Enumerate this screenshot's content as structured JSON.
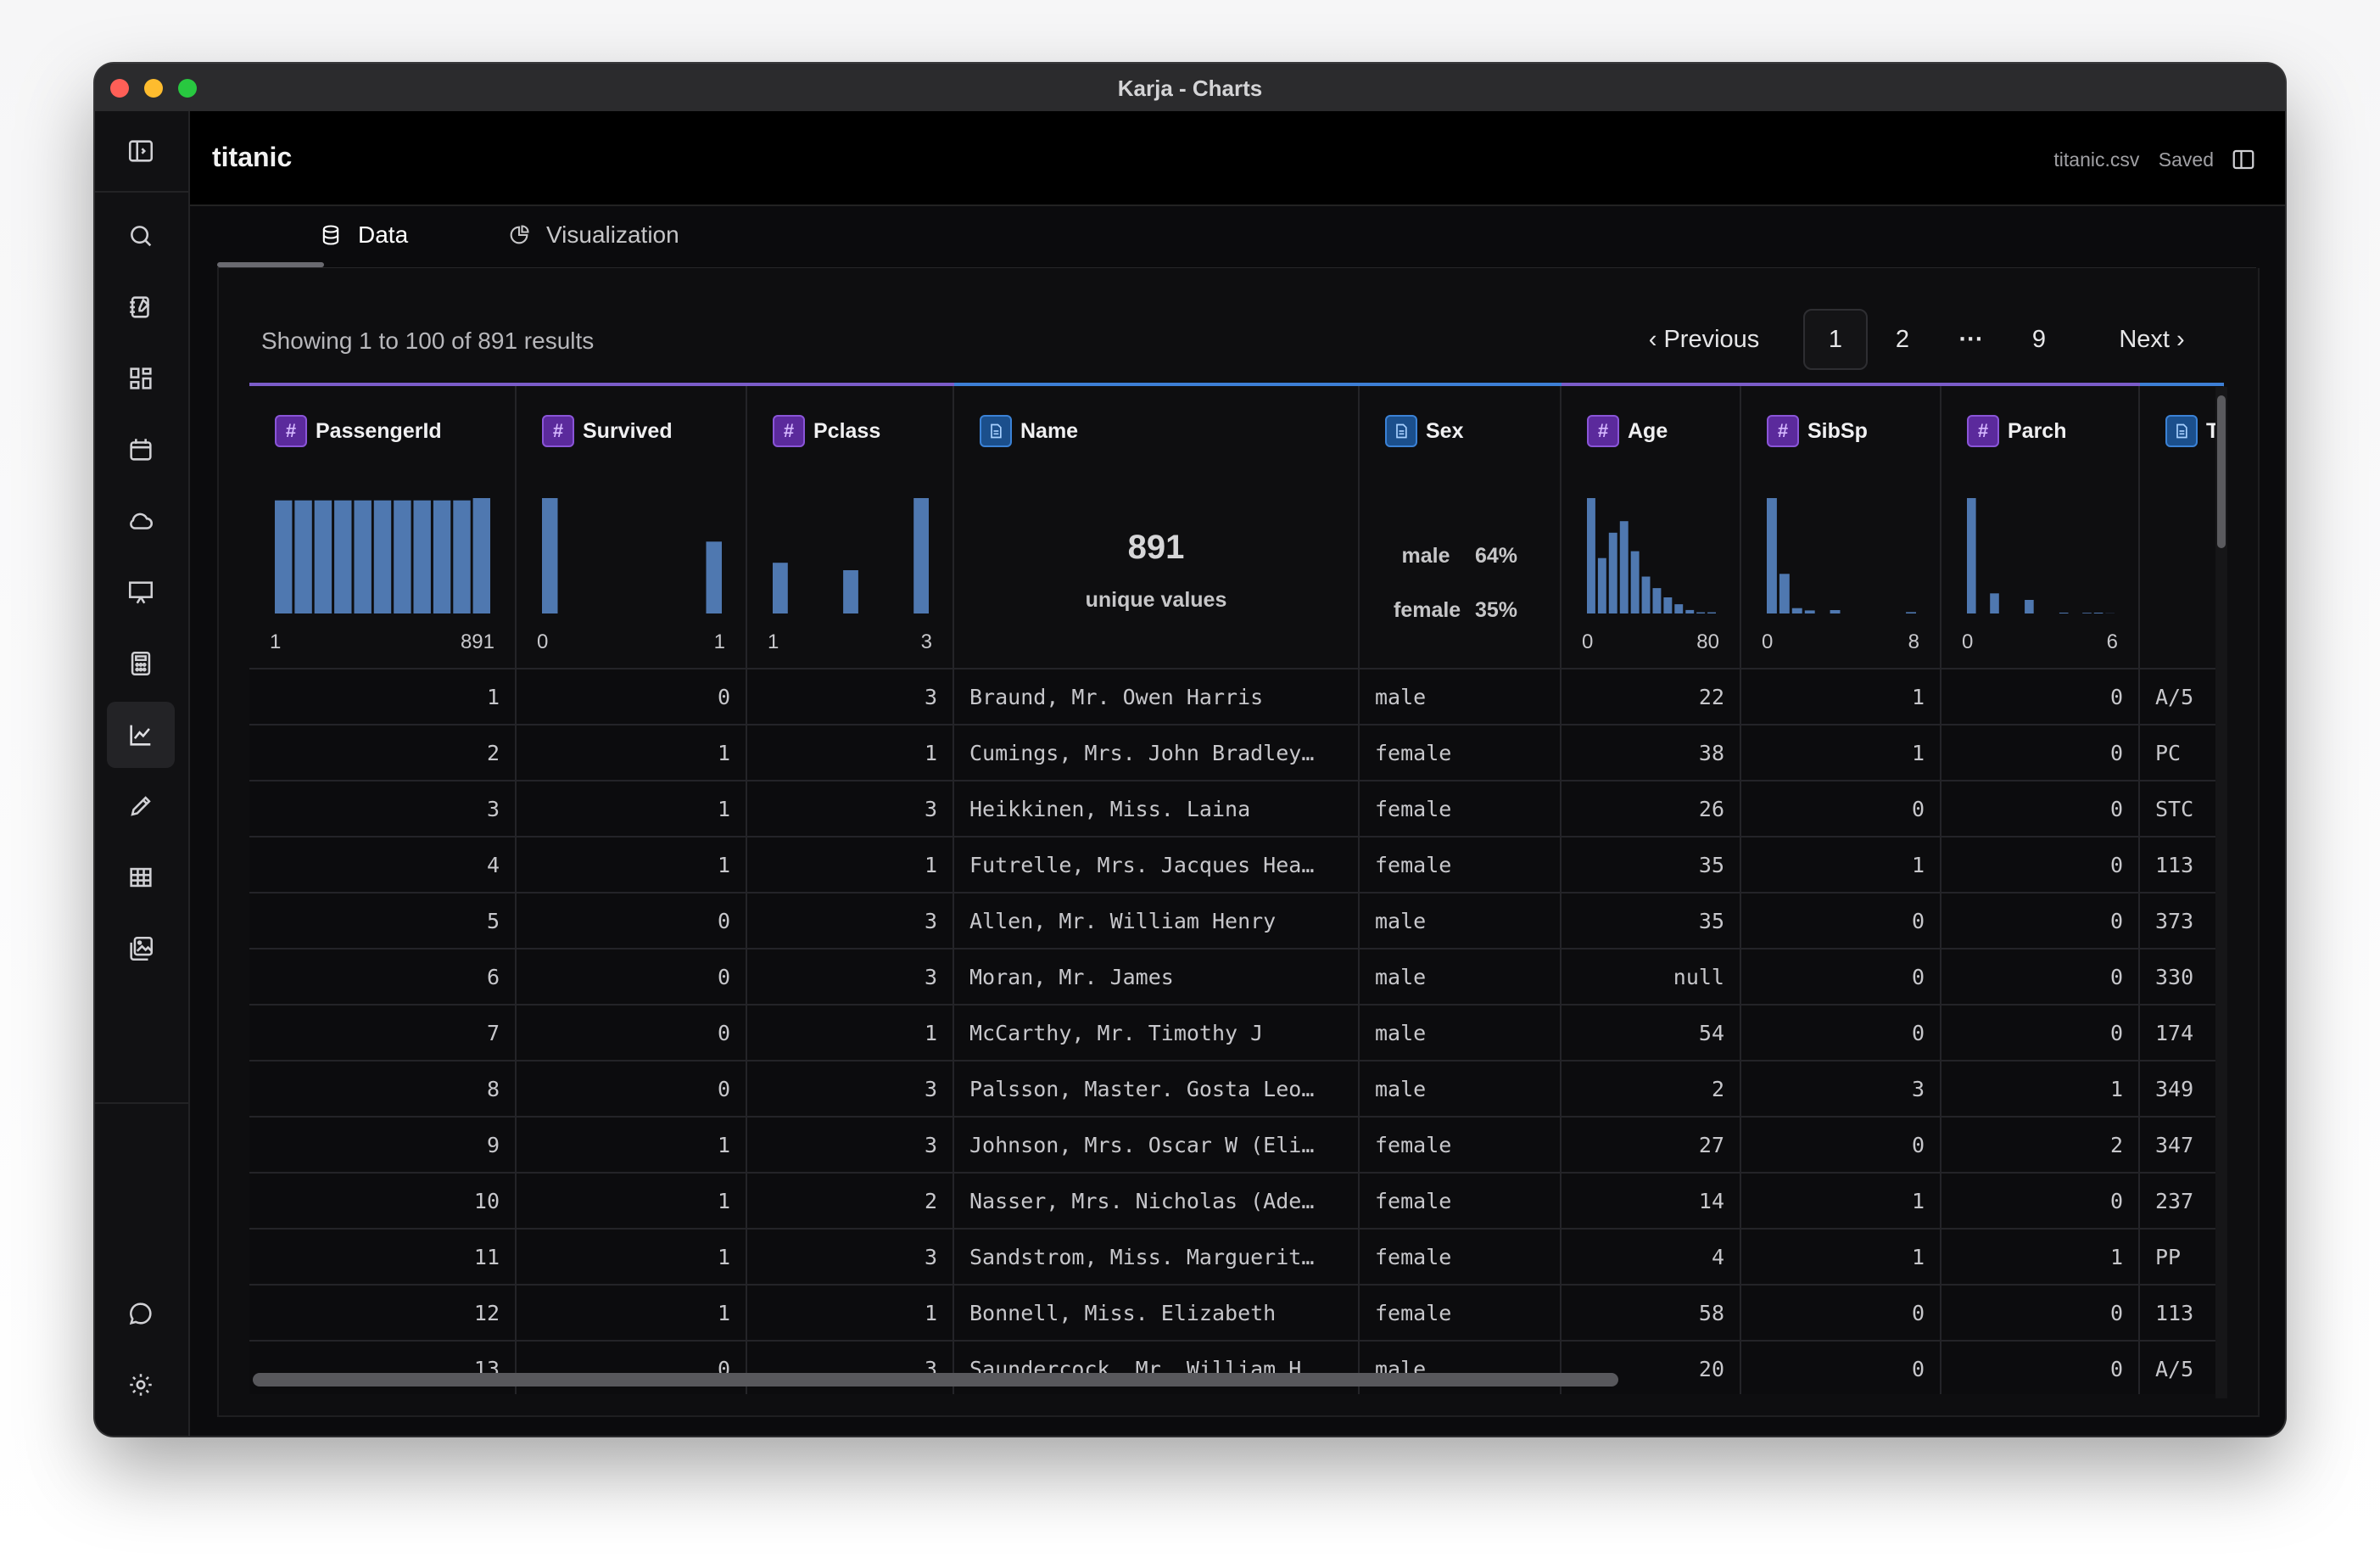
{
  "window": {
    "title": "Karja - Charts"
  },
  "header": {
    "title": "titanic",
    "file": "titanic.csv",
    "status": "Saved"
  },
  "sidebar": {
    "items": [
      {
        "icon": "sidebar-toggle-icon"
      },
      {
        "icon": "search-icon"
      },
      {
        "icon": "notes-icon"
      },
      {
        "icon": "dashboard-icon"
      },
      {
        "icon": "calendar-icon"
      },
      {
        "icon": "cloud-icon"
      },
      {
        "icon": "presentation-icon"
      },
      {
        "icon": "calculator-icon"
      },
      {
        "icon": "chart-icon",
        "active": true
      },
      {
        "icon": "pencil-icon"
      },
      {
        "icon": "table-icon"
      },
      {
        "icon": "gallery-icon"
      },
      {
        "icon": "chat-icon"
      },
      {
        "icon": "settings-icon"
      }
    ]
  },
  "tabs": [
    {
      "label": "Data",
      "active": true
    },
    {
      "label": "Visualization"
    }
  ],
  "results": {
    "summary": "Showing 1 to 100 of 891 results"
  },
  "pagination": {
    "previous": "Previous",
    "pages": [
      "1",
      "2",
      "9"
    ],
    "ellipsis": "···",
    "next": "Next",
    "current": "1"
  },
  "columns": [
    {
      "name": "PassengerId",
      "type": "number",
      "min": "1",
      "max": "891",
      "histogram": [
        1,
        1,
        1,
        1,
        1,
        1,
        1,
        1,
        1,
        1,
        1.02
      ]
    },
    {
      "name": "Survived",
      "type": "number",
      "min": "0",
      "max": "1",
      "histogram": [
        549,
        0,
        0,
        0,
        0,
        0,
        0,
        0,
        0,
        342
      ]
    },
    {
      "name": "Pclass",
      "type": "number",
      "min": "1",
      "max": "3",
      "histogram": [
        216,
        0,
        0,
        0,
        184,
        0,
        0,
        0,
        491
      ]
    },
    {
      "name": "Name",
      "type": "string",
      "unique": "891",
      "unique_label": "unique values"
    },
    {
      "name": "Sex",
      "type": "string",
      "categories": [
        {
          "label": "male",
          "pct": "64%"
        },
        {
          "label": "female",
          "pct": "35%"
        }
      ]
    },
    {
      "name": "Age",
      "type": "number",
      "min": "0",
      "max": "80",
      "histogram": [
        100,
        48,
        70,
        80,
        54,
        32,
        22,
        14,
        8,
        3,
        1,
        1
      ]
    },
    {
      "name": "SibSp",
      "type": "number",
      "min": "0",
      "max": "8",
      "histogram": [
        608,
        209,
        28,
        16,
        0,
        18,
        0,
        0,
        0,
        0,
        0,
        7
      ]
    },
    {
      "name": "Parch",
      "type": "number",
      "min": "0",
      "max": "6",
      "histogram": [
        678,
        0,
        118,
        0,
        0,
        80,
        0,
        0,
        5,
        0,
        4,
        5,
        1
      ]
    },
    {
      "name": "Ticket",
      "type": "string"
    }
  ],
  "rows": [
    [
      "1",
      "0",
      "3",
      "Braund, Mr. Owen Harris",
      "male",
      "22",
      "1",
      "0",
      "A/5"
    ],
    [
      "2",
      "1",
      "1",
      "Cumings, Mrs. John Bradley…",
      "female",
      "38",
      "1",
      "0",
      "PC"
    ],
    [
      "3",
      "1",
      "3",
      "Heikkinen, Miss. Laina",
      "female",
      "26",
      "0",
      "0",
      "STC"
    ],
    [
      "4",
      "1",
      "1",
      "Futrelle, Mrs. Jacques Hea…",
      "female",
      "35",
      "1",
      "0",
      "113"
    ],
    [
      "5",
      "0",
      "3",
      "Allen, Mr. William Henry",
      "male",
      "35",
      "0",
      "0",
      "373"
    ],
    [
      "6",
      "0",
      "3",
      "Moran, Mr. James",
      "male",
      "null",
      "0",
      "0",
      "330"
    ],
    [
      "7",
      "0",
      "1",
      "McCarthy, Mr. Timothy J",
      "male",
      "54",
      "0",
      "0",
      "174"
    ],
    [
      "8",
      "0",
      "3",
      "Palsson, Master. Gosta Leo…",
      "male",
      "2",
      "3",
      "1",
      "349"
    ],
    [
      "9",
      "1",
      "3",
      "Johnson, Mrs. Oscar W (Eli…",
      "female",
      "27",
      "0",
      "2",
      "347"
    ],
    [
      "10",
      "1",
      "2",
      "Nasser, Mrs. Nicholas (Ade…",
      "female",
      "14",
      "1",
      "0",
      "237"
    ],
    [
      "11",
      "1",
      "3",
      "Sandstrom, Miss. Marguerit…",
      "female",
      "4",
      "1",
      "1",
      "PP"
    ],
    [
      "12",
      "1",
      "1",
      "Bonnell, Miss. Elizabeth",
      "female",
      "58",
      "0",
      "0",
      "113"
    ],
    [
      "13",
      "0",
      "3",
      "Saundercock, Mr. William H…",
      "male",
      "20",
      "0",
      "0",
      "A/5"
    ]
  ]
}
